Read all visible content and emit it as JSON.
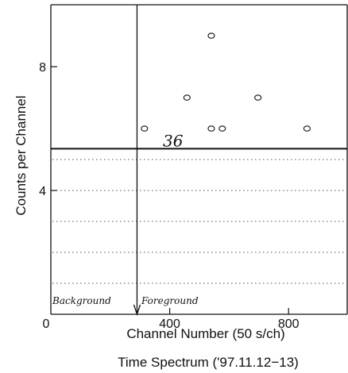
{
  "chart_data": {
    "type": "scatter",
    "title": "",
    "xlabel": "Channel Number (50  s/ch)",
    "ylabel": "Counts per Channel",
    "caption": "Time Spectrum ('97.11.12−13)",
    "xlim": [
      0,
      1000
    ],
    "ylim": [
      0,
      10
    ],
    "x_ticks": [
      400,
      800
    ],
    "x_origin_label": "0",
    "y_ticks": [
      4,
      8
    ],
    "points": [
      {
        "x": 315,
        "y": 6
      },
      {
        "x": 458,
        "y": 7
      },
      {
        "x": 540,
        "y": 9
      },
      {
        "x": 540,
        "y": 6
      },
      {
        "x": 577,
        "y": 6
      },
      {
        "x": 697,
        "y": 7
      },
      {
        "x": 862,
        "y": 6
      }
    ],
    "threshold": {
      "y": 5.35,
      "label": "36"
    },
    "dotted_levels": [
      1,
      2,
      3,
      4,
      5
    ],
    "divider": {
      "x": 290
    },
    "region_labels": {
      "left": "Background",
      "right": "Foreground"
    },
    "marker": "open-circle",
    "grid": false
  }
}
